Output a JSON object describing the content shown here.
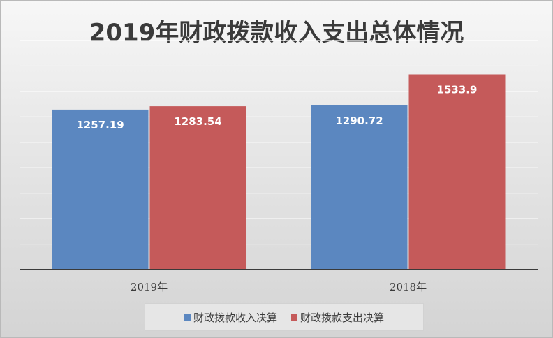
{
  "chart_data": {
    "type": "bar",
    "title": "2019年财政拨款收入支出总体情况",
    "categories": [
      "2019年",
      "2018年"
    ],
    "series": [
      {
        "name": "财政拨款收入决算",
        "values": [
          1257.19,
          1290.72
        ],
        "color": "#5b87c0"
      },
      {
        "name": "财政拨款支出决算",
        "values": [
          1283.54,
          1533.9
        ],
        "color": "#c55a5a"
      }
    ],
    "data_labels": [
      [
        "1257.19",
        "1290.72"
      ],
      [
        "1283.54",
        "1533.9"
      ]
    ],
    "ylim": [
      0,
      1800
    ],
    "grid": true,
    "legend_position": "bottom"
  }
}
